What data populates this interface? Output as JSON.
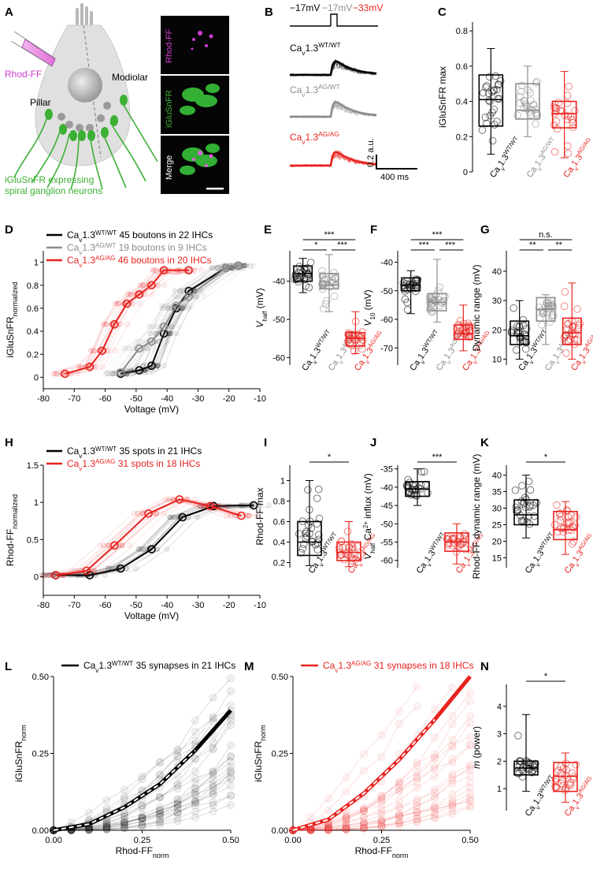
{
  "colors": {
    "wt": "#000000",
    "ag_wt": "#8c8c8c",
    "ag_ag": "#e8221e",
    "rhod": "#d03dd0",
    "green": "#3cb034"
  },
  "panel_letters": [
    "A",
    "B",
    "C",
    "D",
    "E",
    "F",
    "G",
    "H",
    "I",
    "J",
    "K",
    "L",
    "M",
    "N"
  ],
  "panelA": {
    "rhod_label": "Rhod-FF",
    "modiolar": "Modiolar",
    "pillar": "Pillar",
    "caption_line1": "iGluSnFR expressing",
    "caption_line2": "spiral ganglion neurons",
    "micro_labels": [
      "Rhod-FF",
      "iGluSnFR",
      "Merge"
    ]
  },
  "panelB": {
    "v1": "−17mV",
    "v2": "−17mV",
    "v3": "−33mV",
    "scale_y": "0.2 a.u.",
    "scale_x": "400 ms",
    "genotypes": [
      {
        "base": "Ca",
        "sub": "v",
        "rest": "1.3",
        "sup": "WT/WT"
      },
      {
        "base": "Ca",
        "sub": "v",
        "rest": "1.3",
        "sup": "AG/WT"
      },
      {
        "base": "Ca",
        "sub": "v",
        "rest": "1.3",
        "sup": "AG/AG"
      }
    ]
  },
  "genotype_labels": {
    "wt": {
      "base": "Ca",
      "sub": "v",
      "rest": "1.3",
      "sup": "WT/WT"
    },
    "agwt": {
      "base": "Ca",
      "sub": "v",
      "rest": "1.3",
      "sup": "AG/WT"
    },
    "agag": {
      "base": "Ca",
      "sub": "v",
      "rest": "1.3",
      "sup": "AG/AG"
    }
  },
  "panelD_legend": [
    {
      "sup": "WT/WT",
      "text": "45 boutons in 22 IHCs"
    },
    {
      "sup": "AG/WT",
      "text": "19 boutons in 9 IHCs"
    },
    {
      "sup": "AG/AG",
      "text": "46 boutons in 20 IHCs"
    }
  ],
  "panelH_legend": [
    {
      "sup": "WT/WT",
      "text": "35 spots in 21 IHCs"
    },
    {
      "sup": "AG/AG",
      "text": "31 spots in 18 IHCs"
    }
  ],
  "panelL_legend": {
    "sup": "WT/WT",
    "text": "35 synapses in 21 IHCs"
  },
  "panelM_legend": {
    "sup": "AG/AG",
    "text": "31 synapses in 18 IHCs"
  },
  "sig": {
    "E": [
      "***",
      "*",
      "***"
    ],
    "F": [
      "***",
      "***",
      "***"
    ],
    "G": [
      "n.s.",
      "**",
      "**"
    ],
    "I": "*",
    "J": "***",
    "K": "*",
    "N": "*"
  },
  "chart_data": [
    {
      "panel": "C",
      "type": "box",
      "ylabel": "iGluSnFR max",
      "ylim": [
        0,
        0.85
      ],
      "yticks": [
        0.0,
        0.2,
        0.4,
        0.6,
        0.8
      ],
      "groups": [
        {
          "name": "WT/WT",
          "q1": 0.26,
          "median": 0.41,
          "q3": 0.55,
          "whisker": [
            0.1,
            0.7
          ]
        },
        {
          "name": "AG/WT",
          "q1": 0.3,
          "median": 0.35,
          "q3": 0.5,
          "whisker": [
            0.2,
            0.6
          ]
        },
        {
          "name": "AG/AG",
          "q1": 0.25,
          "median": 0.33,
          "q3": 0.4,
          "whisker": [
            0.08,
            0.57
          ]
        }
      ]
    },
    {
      "panel": "D",
      "type": "line",
      "xlabel": "Voltage (mV)",
      "ylabel_base": "iGluSnFR",
      "ylabel_sub": "normalized",
      "xlim": [
        -80,
        -10
      ],
      "ylim": [
        -0.1,
        1.1
      ],
      "xticks": [
        -80,
        -70,
        -60,
        -50,
        -40,
        -30,
        -20,
        -10
      ],
      "yticks": [
        0.0,
        0.2,
        0.4,
        0.6,
        0.8,
        1.0
      ],
      "series": [
        {
          "name": "WT/WT",
          "x": [
            -55,
            -49,
            -45,
            -41,
            -37,
            -33,
            -21,
            -17
          ],
          "y": [
            0.03,
            0.06,
            0.1,
            0.38,
            0.6,
            0.75,
            0.95,
            0.97
          ]
        },
        {
          "name": "AG/WT",
          "x": [
            -55,
            -49,
            -45,
            -41,
            -37,
            -33,
            -21,
            -17
          ],
          "y": [
            0.04,
            0.25,
            0.31,
            0.44,
            0.62,
            0.7,
            0.95,
            0.97
          ]
        },
        {
          "name": "AG/AG",
          "x": [
            -73,
            -65,
            -61,
            -57,
            -53,
            -49,
            -45,
            -41,
            -33
          ],
          "y": [
            0.03,
            0.09,
            0.23,
            0.46,
            0.64,
            0.72,
            0.8,
            0.93,
            0.93
          ]
        }
      ]
    },
    {
      "panel": "E",
      "type": "box",
      "ylabel_base": "V",
      "ylabel_sub": "half",
      "ylabel_unit": " (mV)",
      "ylim": [
        -62,
        -32
      ],
      "yticks": [
        -60,
        -50,
        -40
      ],
      "groups": [
        {
          "name": "WT/WT",
          "q1": -40,
          "median": -38,
          "q3": -36,
          "whisker": [
            -43,
            -34
          ]
        },
        {
          "name": "AG/WT",
          "q1": -42,
          "median": -41,
          "q3": -38,
          "whisker": [
            -48,
            -33
          ]
        },
        {
          "name": "AG/AG",
          "q1": -57,
          "median": -55,
          "q3": -53.5,
          "whisker": [
            -59,
            -48
          ]
        }
      ]
    },
    {
      "panel": "F",
      "type": "box",
      "ylabel_base": "V",
      "ylabel_sub": "10",
      "ylabel_unit": " (mV)",
      "ylim": [
        -76,
        -36
      ],
      "yticks": [
        -70,
        -60,
        -50,
        -40
      ],
      "groups": [
        {
          "name": "WT/WT",
          "q1": -50,
          "median": -48,
          "q3": -45.5,
          "whisker": [
            -58,
            -43
          ]
        },
        {
          "name": "AG/WT",
          "q1": -57,
          "median": -54,
          "q3": -51,
          "whisker": [
            -61,
            -39
          ]
        },
        {
          "name": "AG/AG",
          "q1": -67,
          "median": -65,
          "q3": -62,
          "whisker": [
            -71,
            -55
          ]
        }
      ]
    },
    {
      "panel": "G",
      "type": "box",
      "ylabel": "Dynamic range (mV)",
      "ylim": [
        8,
        47
      ],
      "yticks": [
        10,
        20,
        30,
        40
      ],
      "groups": [
        {
          "name": "WT/WT",
          "q1": 15,
          "median": 18,
          "q3": 23,
          "whisker": [
            10,
            30
          ]
        },
        {
          "name": "AG/WT",
          "q1": 23,
          "median": 27,
          "q3": 31,
          "whisker": [
            15,
            32
          ]
        },
        {
          "name": "AG/AG",
          "q1": 15,
          "median": 19,
          "q3": 24,
          "whisker": [
            10,
            36
          ]
        }
      ]
    },
    {
      "panel": "H",
      "type": "line",
      "xlabel": "Voltage (mV)",
      "ylabel_base": "Rhod-FF",
      "ylabel_sub": "normalized",
      "xlim": [
        -80,
        -10
      ],
      "ylim": [
        -0.25,
        1.5
      ],
      "xticks": [
        -80,
        -70,
        -60,
        -50,
        -40,
        -30,
        -20,
        -10
      ],
      "yticks": [
        0.0,
        0.5,
        1.0,
        1.5
      ],
      "series": [
        {
          "name": "WT/WT",
          "x": [
            -76,
            -65,
            -55,
            -45,
            -35,
            -25,
            -12
          ],
          "y": [
            0.02,
            0.02,
            0.11,
            0.37,
            0.8,
            0.95,
            0.96
          ]
        },
        {
          "name": "AG/AG",
          "x": [
            -76,
            -66,
            -57,
            -46,
            -36,
            -26,
            -16
          ],
          "y": [
            0.02,
            0.08,
            0.42,
            0.85,
            1.04,
            0.95,
            0.82
          ]
        }
      ]
    },
    {
      "panel": "I",
      "type": "box",
      "ylabel": "Rhod-FF max",
      "ylim": [
        0.15,
        1.15
      ],
      "yticks": [
        0.2,
        0.4,
        0.6,
        0.8,
        1.0
      ],
      "groups": [
        {
          "name": "WT/WT",
          "q1": 0.27,
          "median": 0.4,
          "q3": 0.6,
          "whisker": [
            0.17,
            1.0
          ]
        },
        {
          "name": "AG/AG",
          "q1": 0.22,
          "median": 0.3,
          "q3": 0.4,
          "whisker": [
            0.16,
            0.6
          ]
        }
      ]
    },
    {
      "panel": "J",
      "type": "box",
      "ylabel_base": "V",
      "ylabel_sub": "half",
      "ylabel_rest": " Ca",
      "ylabel_sup": "2+",
      "ylabel_unit": " influx (mV)",
      "ylim": [
        -62,
        -34
      ],
      "yticks": [
        -60,
        -55,
        -50,
        -45,
        -40,
        -35
      ],
      "groups": [
        {
          "name": "WT/WT",
          "q1": -42.5,
          "median": -40.5,
          "q3": -38.5,
          "whisker": [
            -45,
            -35
          ]
        },
        {
          "name": "AG/AG",
          "q1": -57.5,
          "median": -55,
          "q3": -52.5,
          "whisker": [
            -61,
            -50
          ]
        }
      ]
    },
    {
      "panel": "K",
      "type": "box",
      "ylabel": "Rhod-FF dynamic range (mV)",
      "ylim": [
        12,
        43
      ],
      "yticks": [
        15,
        20,
        25,
        30,
        35,
        40
      ],
      "groups": [
        {
          "name": "WT/WT",
          "q1": 25,
          "median": 28,
          "q3": 32.5,
          "whisker": [
            21,
            40
          ]
        },
        {
          "name": "AG/AG",
          "q1": 20.5,
          "median": 23.5,
          "q3": 29,
          "whisker": [
            16,
            32
          ]
        }
      ]
    },
    {
      "panel": "L",
      "type": "line",
      "xlabel_base": "Rhod-FF",
      "xlabel_sub": "norm",
      "ylabel_base": "iGluSnFR",
      "ylabel_sub": "norm",
      "xlim": [
        0,
        0.5
      ],
      "ylim": [
        0,
        0.5
      ],
      "xticks": [
        0.0,
        0.25,
        0.5
      ],
      "yticks": [
        0.0,
        0.25,
        0.5
      ],
      "xticklabels": [
        "0.00",
        "0.25",
        "0.50"
      ],
      "yticklabels": [
        "0.00",
        "0.25",
        "0.50"
      ],
      "series": [
        {
          "name": "WT/WT",
          "x": [
            0,
            0.1,
            0.2,
            0.3,
            0.4,
            0.5
          ],
          "y": [
            0,
            0.02,
            0.075,
            0.15,
            0.26,
            0.39
          ]
        }
      ]
    },
    {
      "panel": "M",
      "type": "line",
      "xlabel_base": "Rhod-FF",
      "xlabel_sub": "norm",
      "ylabel_base": "iGluSnFR",
      "ylabel_sub": "norm",
      "xlim": [
        0,
        0.5
      ],
      "ylim": [
        0,
        0.5
      ],
      "xticks": [
        0.0,
        0.25,
        0.5
      ],
      "yticks": [
        0.0,
        0.25,
        0.5
      ],
      "xticklabels": [
        "0.00",
        "0.25",
        "0.50"
      ],
      "yticklabels": [
        "0.00",
        "0.25",
        "0.50"
      ],
      "series": [
        {
          "name": "AG/AG",
          "x": [
            0,
            0.1,
            0.2,
            0.3,
            0.4,
            0.5
          ],
          "y": [
            0,
            0.035,
            0.12,
            0.23,
            0.36,
            0.5
          ]
        }
      ]
    },
    {
      "panel": "N",
      "type": "box",
      "ylabel_base": "m",
      "ylabel_unit": " (power)",
      "ylim": [
        0.2,
        4.8
      ],
      "yticks": [
        1,
        2,
        3,
        4
      ],
      "groups": [
        {
          "name": "WT/WT",
          "q1": 1.5,
          "median": 1.75,
          "q3": 2.0,
          "whisker": [
            0.9,
            3.7
          ]
        },
        {
          "name": "AG/AG",
          "q1": 0.9,
          "median": 1.45,
          "q3": 1.95,
          "whisker": [
            0.5,
            2.3
          ]
        }
      ]
    }
  ]
}
